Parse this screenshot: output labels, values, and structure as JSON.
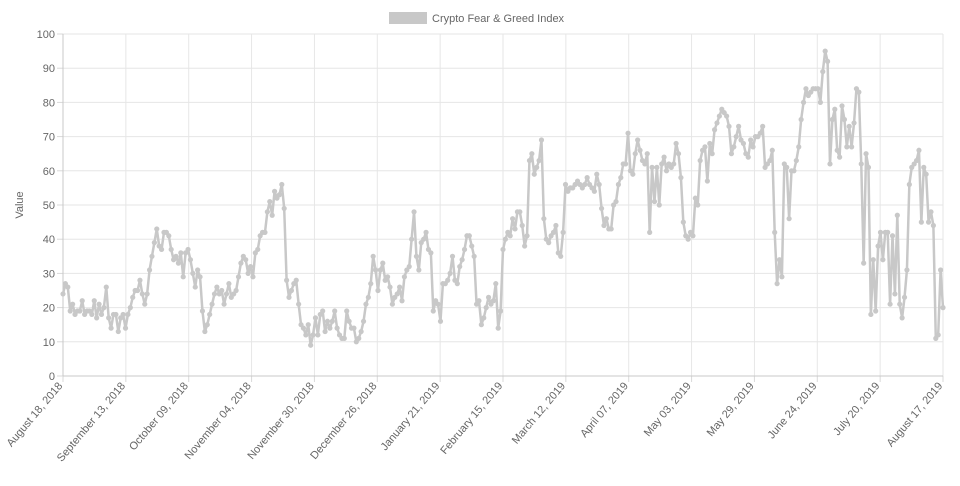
{
  "chart_data": {
    "type": "line",
    "title": "",
    "xlabel": "",
    "ylabel": "Value",
    "ylim": [
      0,
      100
    ],
    "yticks": [
      0,
      10,
      20,
      30,
      40,
      50,
      60,
      70,
      80,
      90,
      100
    ],
    "x_start": "August 18, 2018",
    "x_end": "August 17, 2019",
    "xtick_labels": [
      "August 18, 2018",
      "September 13, 2018",
      "October 09, 2018",
      "November 04, 2018",
      "November 30, 2018",
      "December 26, 2018",
      "January 21, 2019",
      "February 15, 2019",
      "March 12, 2019",
      "April 07, 2019",
      "May 03, 2019",
      "May 29, 2019",
      "June 24, 2019",
      "July 20, 2019",
      "August 17, 2019"
    ],
    "grid": true,
    "legend": "top-center",
    "series": [
      {
        "name": "Crypto Fear & Greed Index",
        "color": "#c8c8c8",
        "values": [
          24,
          27,
          26,
          19,
          21,
          18,
          19,
          19,
          22,
          18,
          19,
          19,
          18,
          22,
          17,
          21,
          18,
          20,
          26,
          17,
          14,
          18,
          18,
          13,
          17,
          18,
          14,
          18,
          20,
          23,
          25,
          25,
          28,
          24,
          21,
          24,
          31,
          35,
          39,
          43,
          38,
          37,
          42,
          42,
          41,
          37,
          34,
          35,
          33,
          36,
          29,
          36,
          37,
          34,
          30,
          26,
          31,
          29,
          19,
          13,
          15,
          18,
          21,
          24,
          26,
          24,
          25,
          21,
          24,
          27,
          23,
          24,
          25,
          29,
          33,
          35,
          34,
          30,
          32,
          29,
          36,
          37,
          41,
          42,
          42,
          48,
          51,
          47,
          54,
          52,
          53,
          56,
          49,
          28,
          23,
          25,
          27,
          28,
          21,
          15,
          14,
          12,
          15,
          9,
          12,
          17,
          12,
          18,
          19,
          13,
          16,
          14,
          16,
          19,
          14,
          12,
          11,
          11,
          19,
          16,
          14,
          14,
          10,
          11,
          13,
          16,
          21,
          23,
          27,
          35,
          31,
          25,
          31,
          33,
          28,
          29,
          26,
          21,
          23,
          24,
          26,
          22,
          29,
          31,
          32,
          40,
          48,
          35,
          31,
          39,
          40,
          42,
          37,
          36,
          19,
          22,
          21,
          16,
          27,
          27,
          28,
          30,
          35,
          28,
          27,
          32,
          34,
          37,
          41,
          41,
          38,
          35,
          21,
          22,
          15,
          17,
          20,
          23,
          21,
          22,
          27,
          14,
          19,
          37,
          40,
          42,
          41,
          46,
          43,
          48,
          48,
          44,
          38,
          41,
          63,
          65,
          59,
          61,
          63,
          69,
          46,
          40,
          39,
          41,
          42,
          44,
          36,
          35,
          42,
          56,
          54,
          55,
          55,
          56,
          57,
          56,
          55,
          56,
          58,
          56,
          55,
          54,
          59,
          56,
          49,
          44,
          46,
          43,
          43,
          50,
          51,
          56,
          58,
          62,
          62,
          71,
          60,
          59,
          65,
          69,
          66,
          63,
          62,
          65,
          42,
          61,
          51,
          61,
          50,
          62,
          64,
          60,
          62,
          61,
          62,
          68,
          65,
          58,
          45,
          41,
          40,
          42,
          41,
          52,
          50,
          63,
          66,
          67,
          57,
          68,
          65,
          72,
          74,
          76,
          78,
          77,
          76,
          73,
          65,
          67,
          70,
          73,
          69,
          68,
          65,
          64,
          69,
          67,
          70,
          70,
          71,
          73,
          61,
          62,
          63,
          66,
          42,
          27,
          34,
          29,
          62,
          61,
          46,
          60,
          60,
          63,
          67,
          75,
          80,
          84,
          82,
          83,
          84,
          84,
          84,
          80,
          89,
          95,
          92,
          62,
          75,
          78,
          66,
          64,
          79,
          75,
          67,
          73,
          67,
          74,
          84,
          83,
          62,
          33,
          65,
          61,
          18,
          34,
          19,
          38,
          42,
          34,
          42,
          42,
          21,
          41,
          24,
          47,
          21,
          17,
          23,
          31,
          56,
          61,
          62,
          63,
          66,
          45,
          61,
          59,
          45,
          48,
          44,
          11,
          12,
          31,
          20
        ]
      }
    ]
  }
}
